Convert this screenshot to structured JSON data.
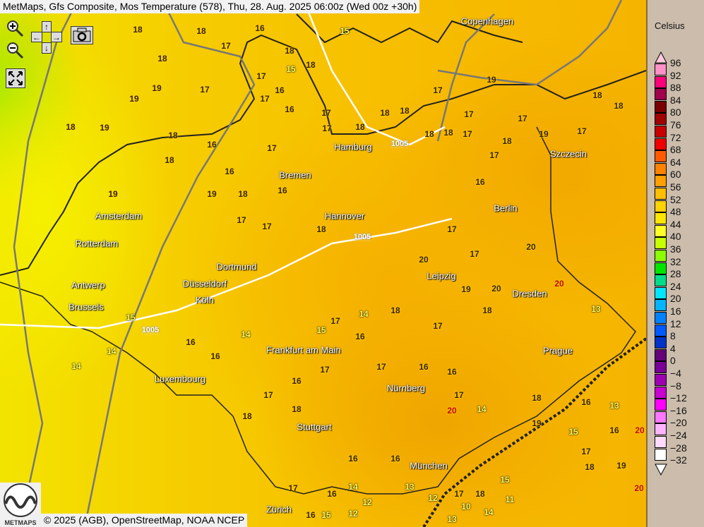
{
  "title": "MetMaps, Gfs Composite, Mos Temperature (578), Thu, 28. Aug. 2025 06:00z (Wed 00z +30h)",
  "controls": {
    "zoom_in": "zoom-in-icon",
    "zoom_out": "zoom-out-icon",
    "pan_up": "↑",
    "pan_down": "↓",
    "pan_left": "←",
    "pan_right": "→",
    "camera": "camera-icon",
    "fullscreen": "fullscreen-icon"
  },
  "cities": [
    "Copenhagen",
    "Hamburg",
    "Szczecin",
    "Bremen",
    "Amsterdam",
    "Hannover",
    "Berlin",
    "Rotterdam",
    "Dortmund",
    "Antwerp",
    "Düsseldorf",
    "Leipzig",
    "Dresden",
    "Köln",
    "Brussels",
    "Frankfurt am Main",
    "Prague",
    "Luxembourg",
    "Nürnberg",
    "Stuttgart",
    "München",
    "Zürich"
  ],
  "isobars": [
    "1005",
    "1005",
    "1005"
  ],
  "temperatures": [
    "18",
    "18",
    "16",
    "15",
    "18",
    "17",
    "18",
    "18",
    "19",
    "16",
    "15",
    "18",
    "17",
    "17",
    "19",
    "19",
    "16",
    "17",
    "18",
    "18",
    "17",
    "18",
    "16",
    "17",
    "17",
    "18",
    "18",
    "18",
    "17",
    "17",
    "19",
    "17",
    "16",
    "18",
    "17",
    "18",
    "18",
    "19",
    "17",
    "17",
    "18",
    "16",
    "19",
    "19",
    "18",
    "16",
    "17",
    "17",
    "18",
    "17",
    "17",
    "20",
    "20",
    "19",
    "20",
    "14",
    "15",
    "17",
    "16",
    "18",
    "17",
    "18",
    "13",
    "15",
    "14",
    "14",
    "16",
    "16",
    "17",
    "17",
    "16",
    "16",
    "14",
    "15",
    "18",
    "17",
    "16",
    "16",
    "17",
    "17",
    "18",
    "13",
    "14",
    "16",
    "17",
    "16",
    "15",
    "18",
    "16",
    "16",
    "12",
    "12",
    "13",
    "14",
    "15",
    "11",
    "10",
    "12",
    "13",
    "18",
    "19",
    "20",
    "20",
    "20",
    "14",
    "16",
    "17",
    "18",
    "19",
    "20"
  ],
  "legend": {
    "unit": "Celsius",
    "levels": [
      "96",
      "92",
      "88",
      "84",
      "80",
      "76",
      "72",
      "68",
      "64",
      "60",
      "56",
      "52",
      "48",
      "44",
      "40",
      "36",
      "32",
      "28",
      "24",
      "20",
      "16",
      "12",
      "8",
      "4",
      "0",
      "−4",
      "−8",
      "−12",
      "−16",
      "−20",
      "−24",
      "−28",
      "−32"
    ],
    "colors": [
      "#ff90c8",
      "#ff0078",
      "#a0004c",
      "#780000",
      "#a00000",
      "#c80000",
      "#f00000",
      "#ff5a00",
      "#ff8200",
      "#ffa000",
      "#ffbe00",
      "#ffd200",
      "#ffe600",
      "#ffff28",
      "#c8ff00",
      "#8cff00",
      "#00e600",
      "#00dc8c",
      "#00e6ff",
      "#00b4ff",
      "#0082ff",
      "#005aff",
      "#0032c8",
      "#640078",
      "#780096",
      "#a000b4",
      "#c800d2",
      "#ff00ff",
      "#ff78ff",
      "#ffb4ff",
      "#ffdcff",
      "#ffffff"
    ],
    "top_arrow_color": "#ffc8dc",
    "bottom_arrow_color": "#ffffff"
  },
  "copyright": "© 2025 (AGB), OpenStreetMap, NOAA NCEP",
  "logo_text": "METMAPS"
}
